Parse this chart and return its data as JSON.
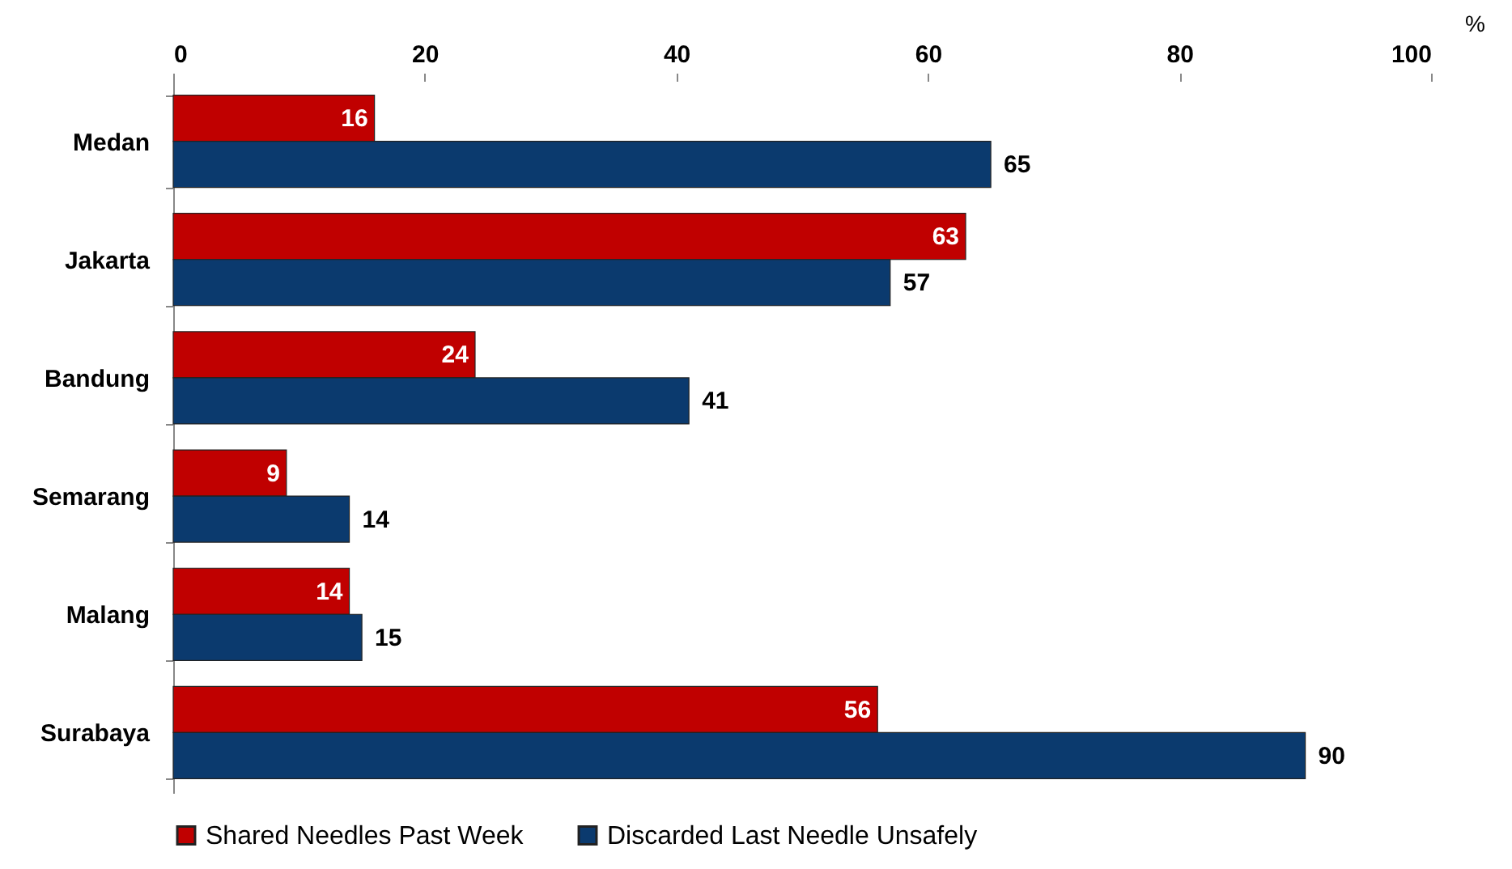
{
  "chart_data": {
    "type": "bar",
    "orientation": "horizontal",
    "xlabel": "%",
    "categories": [
      "Medan",
      "Jakarta",
      "Bandung",
      "Semarang",
      "Malang",
      "Surabaya"
    ],
    "series": [
      {
        "name": "Shared Needles Past Week",
        "color": "#c00000",
        "values": [
          16,
          63,
          24,
          9,
          14,
          56
        ]
      },
      {
        "name": "Discarded Last Needle Unsafely",
        "color": "#0b3a6e",
        "values": [
          65,
          57,
          41,
          14,
          15,
          90
        ]
      }
    ],
    "xlim": [
      0,
      100
    ],
    "xticks": [
      0,
      20,
      40,
      60,
      80,
      100
    ],
    "data_labels": true,
    "legend": "bottom"
  }
}
